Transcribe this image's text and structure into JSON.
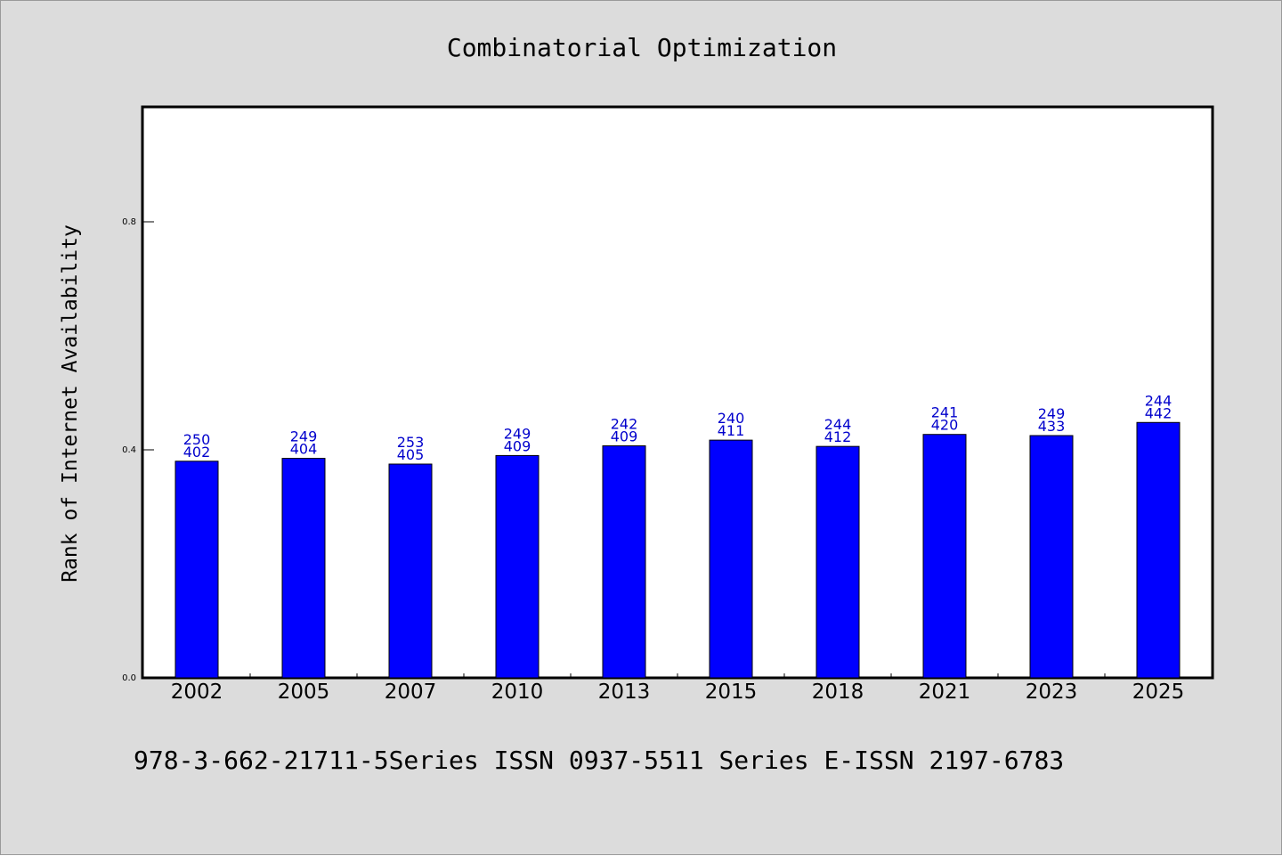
{
  "colors": {
    "background": "#dcdcdc",
    "plot_background": "#ffffff",
    "bar_fill": "#0000ff",
    "label_color": "#0000cc"
  },
  "chart_data": {
    "type": "bar",
    "title": "Combinatorial Optimization",
    "xlabel": "",
    "ylabel": "Rank of Internet Availability",
    "categories": [
      "2002",
      "2005",
      "2007",
      "2010",
      "2013",
      "2015",
      "2018",
      "2021",
      "2023",
      "2025"
    ],
    "values": [
      0.38,
      0.385,
      0.375,
      0.39,
      0.407,
      0.417,
      0.406,
      0.427,
      0.425,
      0.448
    ],
    "labels_top": [
      "250",
      "249",
      "253",
      "249",
      "242",
      "240",
      "244",
      "241",
      "249",
      "244"
    ],
    "labels_bottom": [
      "402",
      "404",
      "405",
      "409",
      "409",
      "411",
      "412",
      "420",
      "433",
      "442"
    ],
    "yticks": [
      "0.0",
      "0.4",
      "0.8"
    ],
    "ylim": [
      0,
      1.0
    ],
    "grid": false,
    "legend": "none"
  },
  "footer": "978-3-662-21711-5Series ISSN 0937-5511 Series E-ISSN 2197-6783"
}
